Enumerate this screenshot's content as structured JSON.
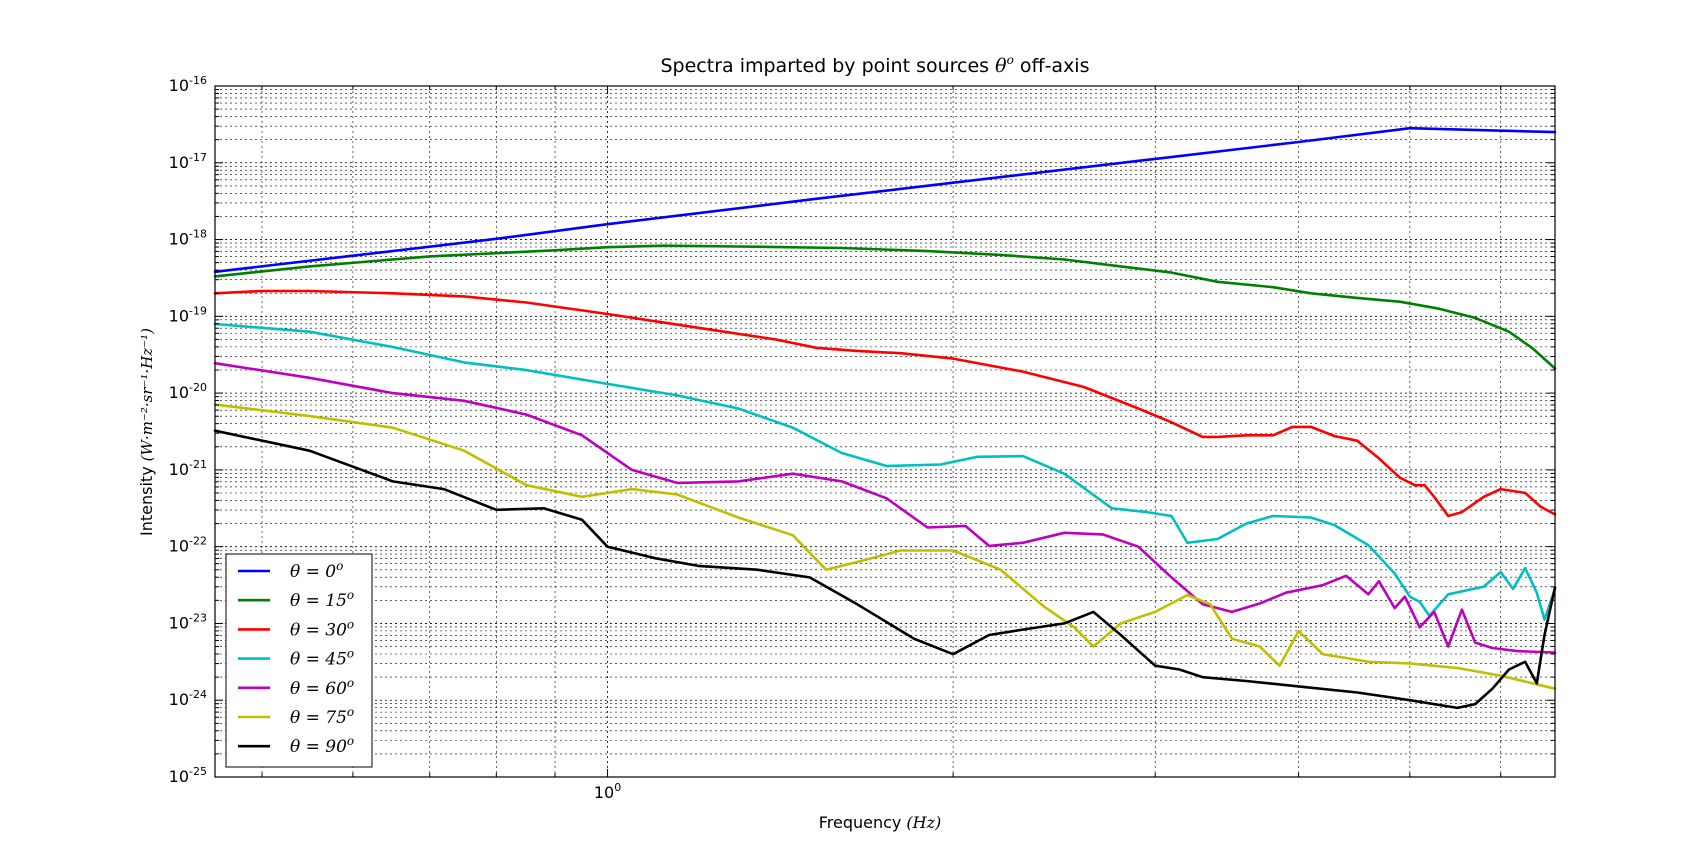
{
  "chart_data": {
    "type": "line",
    "title": "Spectra imparted by point sources θ° off-axis",
    "title_prefix": "Spectra imparted by point sources ",
    "title_math": "θ",
    "title_sup": "o",
    "title_suffix": " off-axis",
    "xlabel": "Frequency",
    "xlabel_unit": "(Hz)",
    "ylabel": "Intensity",
    "ylabel_unit": "(W·m⁻²·sr⁻¹·Hz⁻¹)",
    "x_scale": "log",
    "y_scale": "log",
    "xlim": [
      0.455,
      6.69
    ],
    "ylim": [
      1e-25,
      1e-16
    ],
    "grid": true,
    "legend_position": "lower-left",
    "y_ticks": [
      {
        "value": 1e-16,
        "base": "10",
        "exp": "-16"
      },
      {
        "value": 1e-17,
        "base": "10",
        "exp": "-17"
      },
      {
        "value": 1e-18,
        "base": "10",
        "exp": "-18"
      },
      {
        "value": 1e-19,
        "base": "10",
        "exp": "-19"
      },
      {
        "value": 1e-20,
        "base": "10",
        "exp": "-20"
      },
      {
        "value": 1e-21,
        "base": "10",
        "exp": "-21"
      },
      {
        "value": 1e-22,
        "base": "10",
        "exp": "-22"
      },
      {
        "value": 1e-23,
        "base": "10",
        "exp": "-23"
      },
      {
        "value": 1e-24,
        "base": "10",
        "exp": "-24"
      },
      {
        "value": 1e-25,
        "base": "10",
        "exp": "-25"
      }
    ],
    "x_ticks": [
      {
        "value": 1,
        "base": "10",
        "exp": "0"
      }
    ],
    "series": [
      {
        "name": "θ = 0°",
        "label_pre": "θ = 0",
        "label_sup": "o",
        "color": "#0000ff",
        "points": [
          [
            0.455,
            -18.42
          ],
          [
            0.6,
            -18.21
          ],
          [
            0.8,
            -17.99
          ],
          [
            1.0,
            -17.8
          ],
          [
            1.5,
            -17.48
          ],
          [
            2.0,
            -17.26
          ],
          [
            3.0,
            -16.95
          ],
          [
            4.0,
            -16.73
          ],
          [
            5.0,
            -16.55
          ],
          [
            6.69,
            -16.6
          ]
        ]
      },
      {
        "name": "θ = 15°",
        "label_pre": "θ = 15",
        "label_sup": "o",
        "color": "#008000",
        "points": [
          [
            0.455,
            -18.48
          ],
          [
            0.55,
            -18.35
          ],
          [
            0.7,
            -18.22
          ],
          [
            0.9,
            -18.14
          ],
          [
            1.0,
            -18.1
          ],
          [
            1.12,
            -18.08
          ],
          [
            1.3,
            -18.09
          ],
          [
            1.6,
            -18.11
          ],
          [
            1.9,
            -18.15
          ],
          [
            2.2,
            -18.2
          ],
          [
            2.5,
            -18.26
          ],
          [
            2.8,
            -18.35
          ],
          [
            3.1,
            -18.43
          ],
          [
            3.4,
            -18.55
          ],
          [
            3.8,
            -18.62
          ],
          [
            4.1,
            -18.7
          ],
          [
            4.5,
            -18.76
          ],
          [
            4.9,
            -18.81
          ],
          [
            5.3,
            -18.9
          ],
          [
            5.7,
            -19.02
          ],
          [
            6.1,
            -19.2
          ],
          [
            6.4,
            -19.42
          ],
          [
            6.69,
            -19.68
          ]
        ]
      },
      {
        "name": "θ = 30°",
        "label_pre": "θ = 30",
        "label_sup": "o",
        "color": "#ff0000",
        "points": [
          [
            0.455,
            -18.7
          ],
          [
            0.5,
            -18.67
          ],
          [
            0.55,
            -18.67
          ],
          [
            0.65,
            -18.7
          ],
          [
            0.75,
            -18.74
          ],
          [
            0.85,
            -18.82
          ],
          [
            1.0,
            -18.97
          ],
          [
            1.2,
            -19.15
          ],
          [
            1.4,
            -19.3
          ],
          [
            1.52,
            -19.41
          ],
          [
            1.65,
            -19.45
          ],
          [
            1.8,
            -19.48
          ],
          [
            2.0,
            -19.55
          ],
          [
            2.3,
            -19.72
          ],
          [
            2.6,
            -19.92
          ],
          [
            2.9,
            -20.2
          ],
          [
            3.1,
            -20.38
          ],
          [
            3.3,
            -20.57
          ],
          [
            3.4,
            -20.57
          ],
          [
            3.6,
            -20.55
          ],
          [
            3.8,
            -20.55
          ],
          [
            3.95,
            -20.44
          ],
          [
            4.1,
            -20.44
          ],
          [
            4.3,
            -20.56
          ],
          [
            4.5,
            -20.62
          ],
          [
            4.7,
            -20.85
          ],
          [
            4.9,
            -21.1
          ],
          [
            5.05,
            -21.2
          ],
          [
            5.15,
            -21.2
          ],
          [
            5.25,
            -21.35
          ],
          [
            5.4,
            -21.6
          ],
          [
            5.55,
            -21.55
          ],
          [
            5.8,
            -21.35
          ],
          [
            6.0,
            -21.25
          ],
          [
            6.3,
            -21.3
          ],
          [
            6.5,
            -21.48
          ],
          [
            6.69,
            -21.58
          ]
        ]
      },
      {
        "name": "θ = 45°",
        "label_pre": "θ = 45",
        "label_sup": "o",
        "color": "#00bfbf",
        "points": [
          [
            0.455,
            -19.1
          ],
          [
            0.55,
            -19.2
          ],
          [
            0.65,
            -19.4
          ],
          [
            0.75,
            -19.6
          ],
          [
            0.85,
            -19.7
          ],
          [
            1.0,
            -19.88
          ],
          [
            1.15,
            -20.03
          ],
          [
            1.3,
            -20.2
          ],
          [
            1.45,
            -20.45
          ],
          [
            1.6,
            -20.78
          ],
          [
            1.75,
            -20.95
          ],
          [
            1.95,
            -20.93
          ],
          [
            2.1,
            -20.83
          ],
          [
            2.3,
            -20.82
          ],
          [
            2.5,
            -21.05
          ],
          [
            2.75,
            -21.5
          ],
          [
            2.95,
            -21.55
          ],
          [
            3.1,
            -21.6
          ],
          [
            3.2,
            -21.95
          ],
          [
            3.4,
            -21.9
          ],
          [
            3.6,
            -21.7
          ],
          [
            3.8,
            -21.6
          ],
          [
            4.1,
            -21.62
          ],
          [
            4.3,
            -21.72
          ],
          [
            4.6,
            -21.98
          ],
          [
            4.85,
            -22.35
          ],
          [
            5.0,
            -22.65
          ],
          [
            5.1,
            -22.72
          ],
          [
            5.2,
            -22.9
          ],
          [
            5.4,
            -22.62
          ],
          [
            5.8,
            -22.52
          ],
          [
            6.0,
            -22.33
          ],
          [
            6.15,
            -22.55
          ],
          [
            6.3,
            -22.28
          ],
          [
            6.45,
            -22.6
          ],
          [
            6.55,
            -22.95
          ],
          [
            6.69,
            -22.55
          ]
        ]
      },
      {
        "name": "θ = 60°",
        "label_pre": "θ = 60",
        "label_sup": "o",
        "color": "#bf00bf",
        "points": [
          [
            0.455,
            -19.61
          ],
          [
            0.55,
            -19.8
          ],
          [
            0.65,
            -20.0
          ],
          [
            0.75,
            -20.1
          ],
          [
            0.85,
            -20.28
          ],
          [
            0.95,
            -20.55
          ],
          [
            1.05,
            -21.0
          ],
          [
            1.15,
            -21.17
          ],
          [
            1.3,
            -21.15
          ],
          [
            1.45,
            -21.05
          ],
          [
            1.6,
            -21.15
          ],
          [
            1.75,
            -21.37
          ],
          [
            1.9,
            -21.75
          ],
          [
            2.05,
            -21.73
          ],
          [
            2.15,
            -21.99
          ],
          [
            2.3,
            -21.95
          ],
          [
            2.5,
            -21.82
          ],
          [
            2.7,
            -21.84
          ],
          [
            2.9,
            -22.0
          ],
          [
            3.1,
            -22.4
          ],
          [
            3.3,
            -22.75
          ],
          [
            3.5,
            -22.85
          ],
          [
            3.7,
            -22.74
          ],
          [
            3.9,
            -22.6
          ],
          [
            4.2,
            -22.5
          ],
          [
            4.4,
            -22.38
          ],
          [
            4.6,
            -22.62
          ],
          [
            4.7,
            -22.45
          ],
          [
            4.85,
            -22.8
          ],
          [
            4.95,
            -22.65
          ],
          [
            5.1,
            -23.05
          ],
          [
            5.25,
            -22.85
          ],
          [
            5.4,
            -23.3
          ],
          [
            5.55,
            -22.82
          ],
          [
            5.7,
            -23.25
          ],
          [
            5.9,
            -23.32
          ],
          [
            6.2,
            -23.36
          ],
          [
            6.69,
            -23.38
          ]
        ]
      },
      {
        "name": "θ = 75°",
        "label_pre": "θ = 75",
        "label_sup": "o",
        "color": "#bfbf00",
        "points": [
          [
            0.455,
            -20.15
          ],
          [
            0.55,
            -20.3
          ],
          [
            0.65,
            -20.45
          ],
          [
            0.75,
            -20.75
          ],
          [
            0.85,
            -21.2
          ],
          [
            0.95,
            -21.35
          ],
          [
            1.05,
            -21.25
          ],
          [
            1.15,
            -21.32
          ],
          [
            1.3,
            -21.62
          ],
          [
            1.45,
            -21.85
          ],
          [
            1.55,
            -22.3
          ],
          [
            1.65,
            -22.2
          ],
          [
            1.8,
            -22.05
          ],
          [
            2.0,
            -22.05
          ],
          [
            2.2,
            -22.3
          ],
          [
            2.4,
            -22.78
          ],
          [
            2.55,
            -23.05
          ],
          [
            2.65,
            -23.3
          ],
          [
            2.8,
            -23.0
          ],
          [
            3.0,
            -22.85
          ],
          [
            3.2,
            -22.63
          ],
          [
            3.35,
            -22.75
          ],
          [
            3.5,
            -23.2
          ],
          [
            3.7,
            -23.3
          ],
          [
            3.85,
            -23.55
          ],
          [
            4.0,
            -23.1
          ],
          [
            4.2,
            -23.4
          ],
          [
            4.4,
            -23.45
          ],
          [
            4.6,
            -23.5
          ],
          [
            5.0,
            -23.52
          ],
          [
            5.5,
            -23.58
          ],
          [
            6.0,
            -23.68
          ],
          [
            6.69,
            -23.85
          ]
        ]
      },
      {
        "name": "θ = 90°",
        "label_pre": "θ = 90",
        "label_sup": "o",
        "color": "#000000",
        "points": [
          [
            0.455,
            -20.49
          ],
          [
            0.55,
            -20.75
          ],
          [
            0.65,
            -21.15
          ],
          [
            0.72,
            -21.25
          ],
          [
            0.8,
            -21.52
          ],
          [
            0.88,
            -21.5
          ],
          [
            0.95,
            -21.65
          ],
          [
            1.0,
            -22.0
          ],
          [
            1.1,
            -22.15
          ],
          [
            1.2,
            -22.25
          ],
          [
            1.35,
            -22.3
          ],
          [
            1.5,
            -22.4
          ],
          [
            1.65,
            -22.75
          ],
          [
            1.85,
            -23.2
          ],
          [
            2.0,
            -23.4
          ],
          [
            2.15,
            -23.15
          ],
          [
            2.3,
            -23.08
          ],
          [
            2.5,
            -23.0
          ],
          [
            2.65,
            -22.85
          ],
          [
            2.8,
            -23.15
          ],
          [
            3.0,
            -23.55
          ],
          [
            3.15,
            -23.6
          ],
          [
            3.3,
            -23.7
          ],
          [
            3.6,
            -23.75
          ],
          [
            4.0,
            -23.82
          ],
          [
            4.5,
            -23.9
          ],
          [
            5.0,
            -24.0
          ],
          [
            5.5,
            -24.1
          ],
          [
            5.7,
            -24.05
          ],
          [
            5.9,
            -23.85
          ],
          [
            6.1,
            -23.6
          ],
          [
            6.3,
            -23.5
          ],
          [
            6.45,
            -23.78
          ],
          [
            6.55,
            -23.15
          ],
          [
            6.69,
            -22.53
          ]
        ]
      }
    ]
  }
}
